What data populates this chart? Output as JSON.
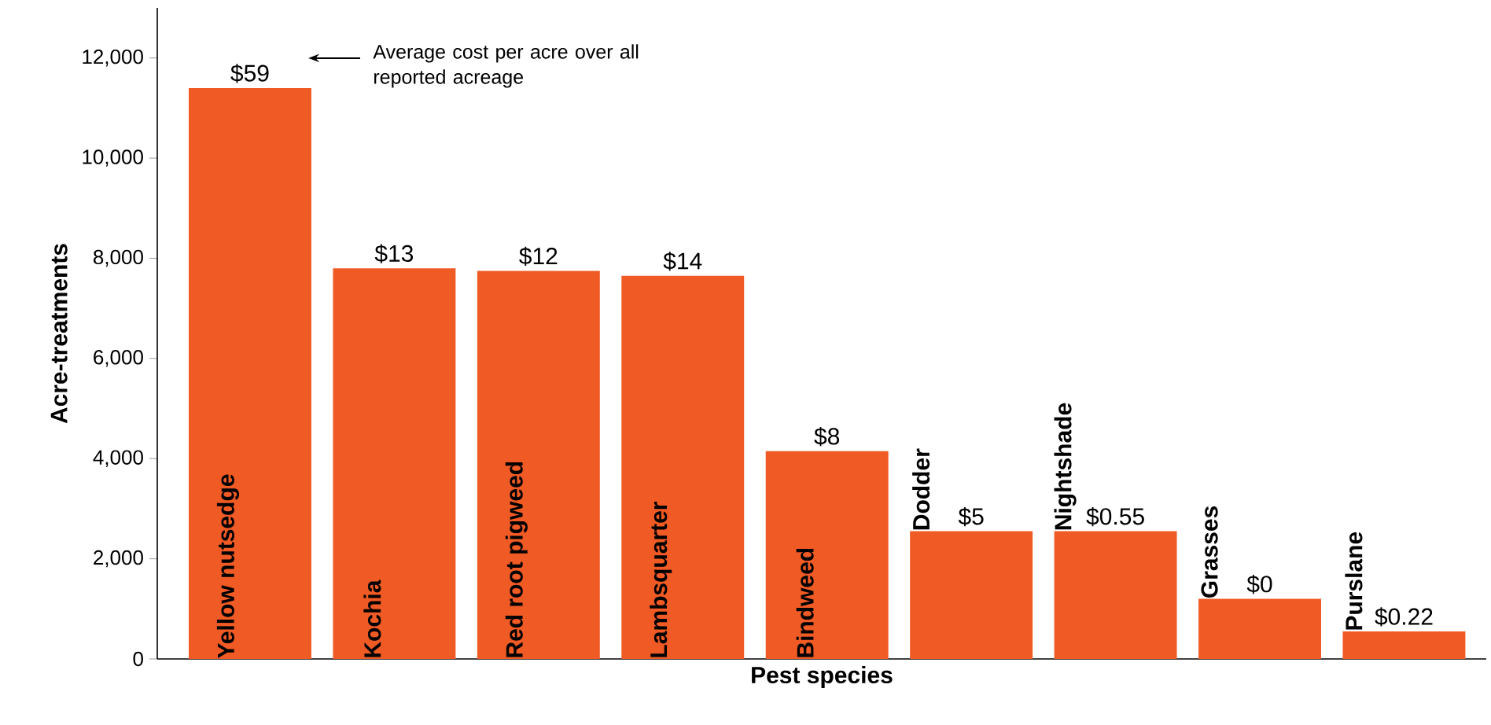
{
  "chart_data": {
    "type": "bar",
    "xlabel": "Pest species",
    "ylabel": "Acre-treatments",
    "categories": [
      "Yellow nutsedge",
      "Kochia",
      "Red root pigweed",
      "Lambsquarter",
      "Bindweed",
      "Dodder",
      "Nightshade",
      "Grasses",
      "Purslane"
    ],
    "values": [
      11400,
      7800,
      7750,
      7650,
      4150,
      2550,
      2550,
      1200,
      550
    ],
    "color": "#f05a24",
    "ylim": [
      0,
      13000
    ],
    "yticks": [
      {
        "value": 0,
        "label": "0"
      },
      {
        "value": 2000,
        "label": "2,000"
      },
      {
        "value": 4000,
        "label": "4,000"
      },
      {
        "value": 6000,
        "label": "6,000"
      },
      {
        "value": 8000,
        "label": "8,000"
      },
      {
        "value": 10000,
        "label": "10,000"
      },
      {
        "value": 12000,
        "label": "12,000"
      }
    ],
    "annotations": [
      {
        "text": "$59",
        "x": "Yellow nutsedge",
        "y": 11400
      },
      {
        "text": "$13",
        "x": "Kochia",
        "y": 7800
      },
      {
        "text": "$12",
        "x": "Red root pigweed",
        "y": 7750
      },
      {
        "text": "$14",
        "x": "Lambsquarter",
        "y": 7650
      },
      {
        "text": "$8",
        "x": "Bindweed",
        "y": 4150
      },
      {
        "text": "$5",
        "x": "Dodder",
        "y": 2550
      },
      {
        "text": "$0.55",
        "x": "Nightshade",
        "y": 2550
      },
      {
        "text": "$0",
        "x": "Grasses",
        "y": 1200
      },
      {
        "text": "$0.22",
        "x": "Purslane",
        "y": 550
      },
      "Average cost per acre over all reported acreage"
    ],
    "grid": false
  }
}
